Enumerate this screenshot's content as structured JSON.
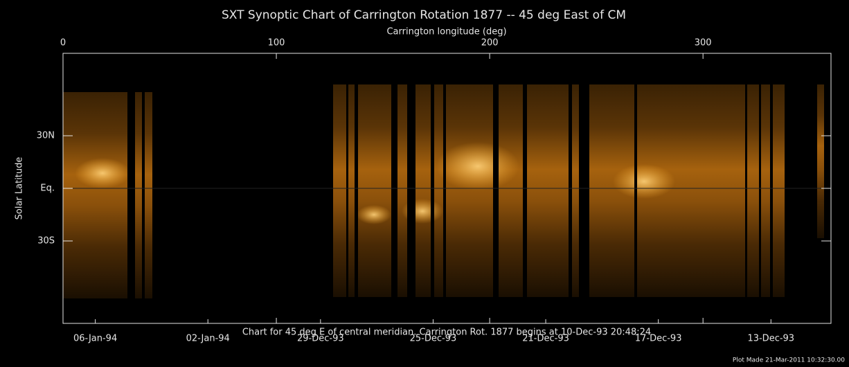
{
  "chart_data": {
    "type": "image",
    "title": "SXT Synoptic Chart of Carrington Rotation 1877 -- 45 deg East of CM",
    "xlabel": "Carrington longitude (deg)",
    "ylabel": "Solar Latitude",
    "xlim": [
      0,
      360
    ],
    "xticks": [
      0,
      100,
      200,
      300
    ],
    "ylim": [
      -77,
      77
    ],
    "yticks": [
      {
        "value": 30,
        "label": "30N"
      },
      {
        "value": 0,
        "label": "Eq."
      },
      {
        "value": -30,
        "label": "30S"
      }
    ],
    "x2lim": [
      "1994-01-07T03:31Z",
      "1993-12-10T20:48Z"
    ],
    "x2ticks": [
      {
        "value": "1994-01-06",
        "label": "06-Jan-94"
      },
      {
        "value": "1994-01-02",
        "label": "02-Jan-94"
      },
      {
        "value": "1993-12-29",
        "label": "29-Dec-93"
      },
      {
        "value": "1993-12-25",
        "label": "25-Dec-93"
      },
      {
        "value": "1993-12-21",
        "label": "21-Dec-93"
      },
      {
        "value": "1993-12-17",
        "label": "17-Dec-93"
      },
      {
        "value": "1993-12-13",
        "label": "13-Dec-93"
      }
    ],
    "caption": "Chart for 45 deg E of central meridian.  Carrington Rot. 1877 begins at 10-Dec-93 20:48:24",
    "footnote": "Plot Made 21-Mar-2011 10:32:30.00"
  }
}
